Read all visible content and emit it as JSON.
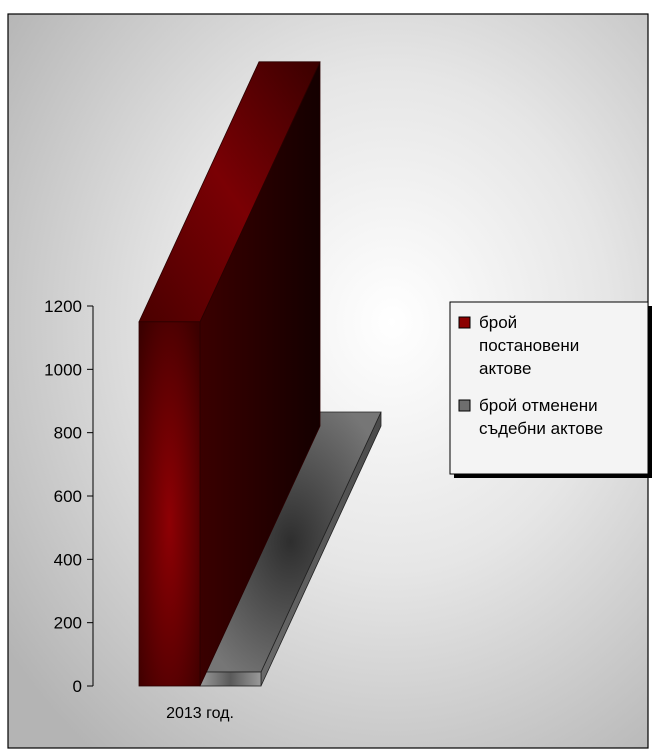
{
  "chart_data": {
    "type": "bar",
    "categories": [
      "2013 год."
    ],
    "series": [
      {
        "name": "брой постановени актове",
        "values": [
          1150
        ],
        "color": "#8b0000"
      },
      {
        "name": "брой отменени съдебни актове",
        "values": [
          40
        ],
        "color": "#6e6e6e"
      }
    ],
    "yticks": [
      "0",
      "200",
      "400",
      "600",
      "800",
      "1000",
      "1200"
    ],
    "ylim": [
      0,
      1200
    ],
    "legend": {
      "position": "right",
      "items": [
        {
          "lines": [
            "брой",
            "постановени",
            "актове"
          ]
        },
        {
          "lines": [
            "брой отменени",
            "съдебни актове"
          ]
        }
      ]
    },
    "style": "3d"
  }
}
